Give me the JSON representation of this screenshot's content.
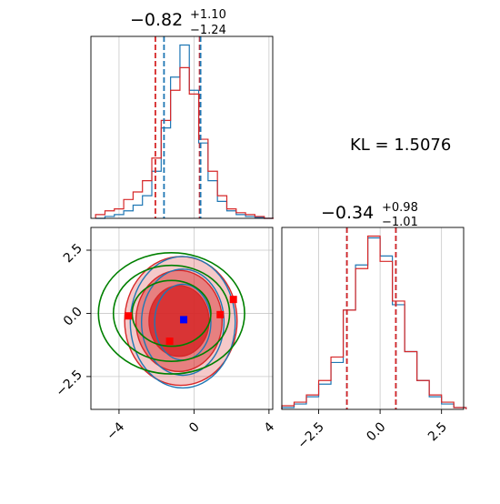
{
  "colors": {
    "red": "#d62728",
    "blue": "#1f77b4",
    "green": "#008000",
    "grid": "#c8c8c8",
    "marker_red": "#ff0000",
    "marker_blue": "#0000ff"
  },
  "annotation": {
    "kl_text": "KL = 1.5076"
  },
  "chart_data": [
    {
      "type": "histogram",
      "panel": "marginal-param-1",
      "title": {
        "median": "−0.82",
        "upper": "+1.10",
        "lower": "−1.24"
      },
      "xlim": [
        -5.5,
        4.2
      ],
      "grid": true,
      "x": [
        -5.0,
        -4.5,
        -4.0,
        -3.5,
        -3.0,
        -2.5,
        -2.0,
        -1.5,
        -1.0,
        -0.5,
        0.0,
        0.5,
        1.0,
        1.5,
        2.0,
        2.5,
        3.0,
        3.5,
        4.0
      ],
      "series": [
        {
          "color": "blue",
          "values": [
            0,
            0.01,
            0.02,
            0.04,
            0.07,
            0.12,
            0.25,
            0.48,
            0.75,
            0.92,
            0.68,
            0.4,
            0.2,
            0.09,
            0.04,
            0.02,
            0.01,
            0.005,
            0
          ]
        },
        {
          "color": "red",
          "values": [
            0.02,
            0.04,
            0.05,
            0.1,
            0.14,
            0.2,
            0.32,
            0.52,
            0.68,
            0.8,
            0.66,
            0.42,
            0.25,
            0.12,
            0.05,
            0.03,
            0.02,
            0.01,
            0
          ]
        }
      ],
      "vlines": [
        {
          "x": -2.06,
          "color": "red"
        },
        {
          "x": -1.6,
          "color": "blue"
        },
        {
          "x": 0.3,
          "color": "red"
        },
        {
          "x": 0.35,
          "color": "blue"
        }
      ]
    },
    {
      "type": "histogram",
      "panel": "marginal-param-2",
      "title": {
        "median": "−0.34",
        "upper": "+0.98",
        "lower": "−1.01"
      },
      "xlim": [
        -4.0,
        3.4
      ],
      "xticks": [
        -2.5,
        0.0,
        2.5
      ],
      "xtick_labels": [
        "−2.5",
        "0.0",
        "2.5"
      ],
      "grid": true,
      "x": [
        -3.75,
        -3.25,
        -2.75,
        -2.25,
        -1.75,
        -1.25,
        -0.75,
        -0.25,
        0.25,
        0.75,
        1.25,
        1.75,
        2.25,
        2.75,
        3.25
      ],
      "series": [
        {
          "color": "blue",
          "values": [
            0.01,
            0.03,
            0.07,
            0.14,
            0.26,
            0.55,
            0.8,
            0.95,
            0.85,
            0.58,
            0.32,
            0.16,
            0.07,
            0.03,
            0.01
          ]
        },
        {
          "color": "red",
          "values": [
            0.02,
            0.04,
            0.08,
            0.16,
            0.29,
            0.55,
            0.78,
            0.96,
            0.82,
            0.6,
            0.32,
            0.16,
            0.08,
            0.04,
            0.01
          ]
        }
      ],
      "vlines": [
        {
          "x": -1.35,
          "color": "blue"
        },
        {
          "x": -1.35,
          "color": "red"
        },
        {
          "x": 0.64,
          "color": "blue"
        },
        {
          "x": 0.64,
          "color": "red"
        }
      ]
    },
    {
      "type": "contour",
      "panel": "joint-param-1-2",
      "xlim": [
        -5.5,
        4.2
      ],
      "ylim": [
        -3.8,
        3.4
      ],
      "xticks": [
        -4,
        0,
        4
      ],
      "xtick_labels": [
        "−4",
        "0",
        "4"
      ],
      "yticks": [
        -2.5,
        0.0,
        2.5
      ],
      "ytick_labels": [
        "−2.5",
        "0.0",
        "2.5"
      ],
      "grid": true,
      "red_contours": [
        {
          "cx": -0.8,
          "cy": -0.3,
          "rx": 1.6,
          "ry": 1.4,
          "fill_opacity": 0.85
        },
        {
          "cx": -0.8,
          "cy": -0.3,
          "rx": 2.3,
          "ry": 2.0,
          "fill_opacity": 0.45
        },
        {
          "cx": -0.7,
          "cy": -0.3,
          "rx": 3.0,
          "ry": 2.55,
          "fill_opacity": 0.25
        }
      ],
      "blue_contours": [
        {
          "cx": -0.6,
          "cy": -0.35,
          "rx": 1.5,
          "ry": 1.5
        },
        {
          "cx": -0.6,
          "cy": -0.35,
          "rx": 2.2,
          "ry": 2.1
        },
        {
          "cx": -0.6,
          "cy": -0.35,
          "rx": 2.8,
          "ry": 2.6
        }
      ],
      "green_contours": [
        {
          "cx": -1.2,
          "cy": 0.0,
          "rx": 2.1,
          "ry": 1.3
        },
        {
          "cx": -1.2,
          "cy": 0.0,
          "rx": 3.1,
          "ry": 1.9
        },
        {
          "cx": -1.2,
          "cy": 0.0,
          "rx": 3.9,
          "ry": 2.4
        }
      ],
      "red_markers": [
        {
          "x": -3.5,
          "y": -0.1
        },
        {
          "x": -1.3,
          "y": -1.1
        },
        {
          "x": 1.4,
          "y": -0.05
        },
        {
          "x": 2.1,
          "y": 0.55
        }
      ],
      "blue_marker": {
        "x": -0.55,
        "y": -0.25
      }
    }
  ]
}
